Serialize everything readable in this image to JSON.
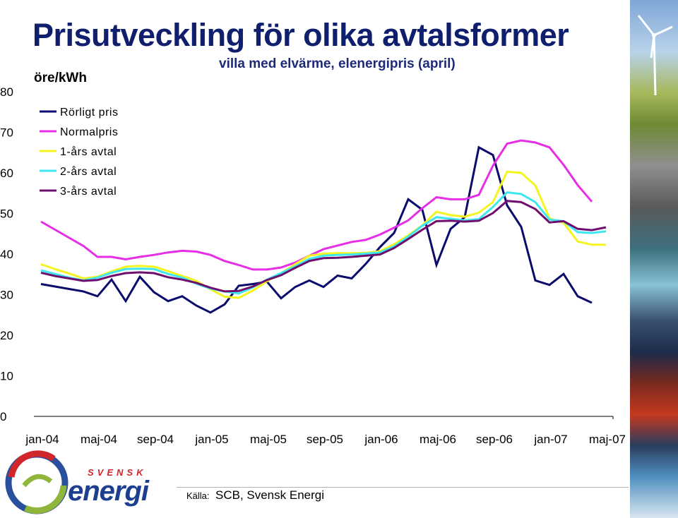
{
  "header": {
    "title": "Prisutveckling för olika avtalsformer",
    "subtitle": "villa med elvärme, elenergipris (april)"
  },
  "logo": {
    "top": "SVENSK",
    "bottom": "energi"
  },
  "footer": {
    "source_label": "Källa:",
    "source_text": "SCB, Svensk Energi"
  },
  "chart_data": {
    "type": "line",
    "ylabel": "öre/kWh",
    "xlabel": "",
    "ylim": [
      0,
      80
    ],
    "yticks": [
      0,
      10,
      20,
      30,
      40,
      50,
      60,
      70,
      80
    ],
    "xtick_labels": [
      "jan-04",
      "maj-04",
      "sep-04",
      "jan-05",
      "maj-05",
      "sep-05",
      "jan-06",
      "maj-06",
      "sep-06",
      "jan-07",
      "maj-07"
    ],
    "x_start": "jan-04",
    "x_step": "month",
    "grid": false,
    "legend_position": "top-left",
    "series": [
      {
        "name": "Rörligt pris",
        "color": "#0b0b6e",
        "values": [
          32.6,
          32,
          31.4,
          30.8,
          29.6,
          33.7,
          28.4,
          34.4,
          30.6,
          28.4,
          29.6,
          27.3,
          25.6,
          27.6,
          32.2,
          32.6,
          33.2,
          29.1,
          31.9,
          33.5,
          31.9,
          34.7,
          34,
          37.6,
          41.7,
          45.2,
          53.5,
          50.9,
          37.3,
          46.2,
          49.1,
          66.3,
          64.4,
          52,
          46.7,
          33.5,
          32.4,
          35.1,
          29.6,
          28
        ]
      },
      {
        "name": "Normalpris",
        "color": "#e62ee6",
        "values": [
          48,
          46,
          44,
          42,
          39.3,
          39.3,
          38.7,
          39.3,
          39.8,
          40.4,
          40.8,
          40.6,
          39.8,
          38.3,
          37.3,
          36.2,
          36.2,
          36.7,
          37.9,
          39.6,
          41.2,
          42.1,
          43,
          43.5,
          44.8,
          46.5,
          48.3,
          51.3,
          54,
          53.5,
          53.5,
          54.6,
          61.8,
          67.2,
          68,
          67.5,
          66.3,
          62,
          57,
          52.9
        ]
      },
      {
        "name": "1-års avtal",
        "color": "#f4f41e",
        "values": [
          37.5,
          36.3,
          35.2,
          34,
          34.4,
          35.7,
          36.9,
          37.1,
          36.9,
          35.8,
          34.6,
          33.4,
          31.3,
          29.5,
          29.2,
          31,
          33.3,
          35.3,
          37.5,
          39.6,
          40.1,
          40.2,
          40.2,
          40.3,
          40.7,
          42.4,
          44.6,
          47.1,
          50.4,
          49.6,
          49.2,
          50.2,
          52.8,
          60.3,
          60,
          56.9,
          48.8,
          47.7,
          43.1,
          42.3,
          42.3
        ]
      },
      {
        "name": "2-års avtal",
        "color": "#3ee6f0",
        "values": [
          36,
          35.1,
          34.2,
          33.5,
          34.2,
          35.4,
          36.3,
          36.4,
          36.3,
          35.1,
          34.2,
          32.7,
          31.5,
          30.8,
          30.3,
          31.8,
          33.7,
          35.3,
          37,
          38.8,
          39.6,
          39.8,
          39.9,
          40.1,
          40.4,
          41.9,
          44.3,
          47,
          49.1,
          48.7,
          48.3,
          48.6,
          51.6,
          55.2,
          54.8,
          52.8,
          48.5,
          48.1,
          45.4,
          45.2,
          45.6
        ]
      },
      {
        "name": "3-års avtal",
        "color": "#6e0f6e",
        "values": [
          35.4,
          34.6,
          34,
          33.4,
          33.6,
          34.6,
          35.3,
          35.5,
          35.3,
          34.3,
          33.7,
          32.9,
          31.7,
          30.8,
          30.9,
          32,
          33.6,
          34.8,
          36.6,
          38.3,
          39,
          39.1,
          39.3,
          39.6,
          39.9,
          41.5,
          43.7,
          46,
          48.1,
          48.2,
          48,
          48.2,
          50.1,
          53.1,
          52.8,
          51.1,
          47.8,
          48.1,
          46.2,
          45.9,
          46.6
        ]
      }
    ]
  }
}
